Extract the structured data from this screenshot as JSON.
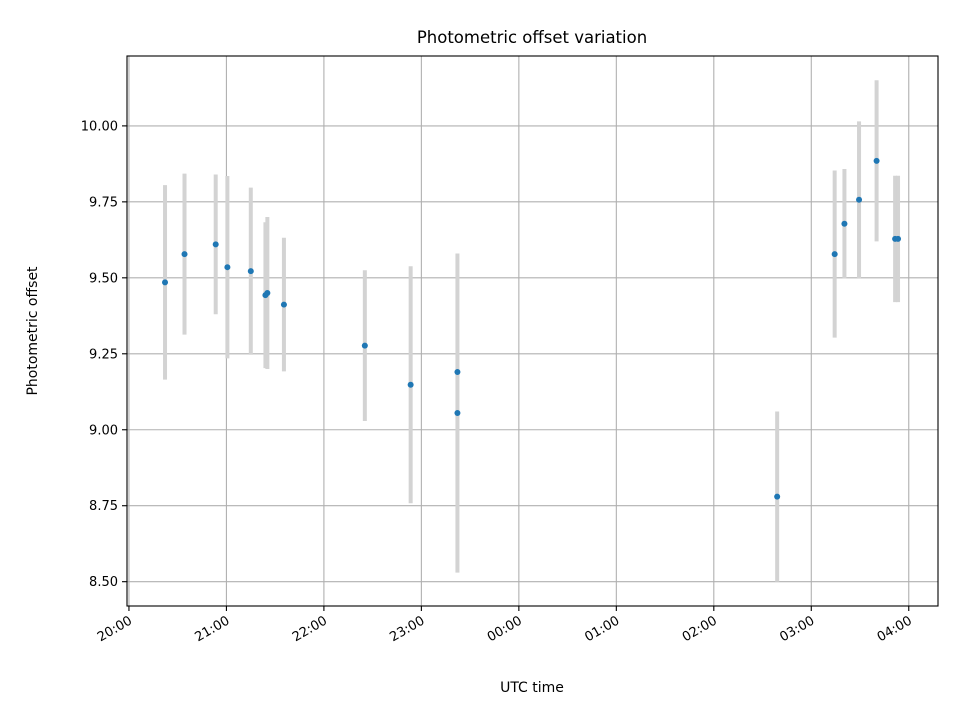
{
  "chart_data": {
    "type": "scatter",
    "title": "Photometric offset variation",
    "xlabel": "UTC time",
    "ylabel": "Photometric offset",
    "x_ticks": [
      "20:00",
      "21:00",
      "22:00",
      "23:00",
      "00:00",
      "01:00",
      "02:00",
      "03:00",
      "04:00"
    ],
    "x_tick_hours": [
      20,
      21,
      22,
      23,
      24,
      25,
      26,
      27,
      28
    ],
    "xlim_hours": [
      19.98,
      28.3
    ],
    "y_ticks": [
      "8.50",
      "8.75",
      "9.00",
      "9.25",
      "9.50",
      "9.75",
      "10.00"
    ],
    "y_tick_values": [
      8.5,
      8.75,
      9.0,
      9.25,
      9.5,
      9.75,
      10.0
    ],
    "ylim": [
      8.42,
      10.23
    ],
    "grid": true,
    "marker_color": "#1f77b4",
    "errorbar_color": "#d3d3d3",
    "points": [
      {
        "time": "20:22",
        "hour": 20.37,
        "y": 9.485,
        "err": 0.32
      },
      {
        "time": "20:34",
        "hour": 20.57,
        "y": 9.578,
        "err": 0.265
      },
      {
        "time": "20:53",
        "hour": 20.89,
        "y": 9.61,
        "err": 0.23
      },
      {
        "time": "21:01",
        "hour": 21.01,
        "y": 9.535,
        "err": 0.3
      },
      {
        "time": "21:15",
        "hour": 21.25,
        "y": 9.522,
        "err": 0.275
      },
      {
        "time": "21:24",
        "hour": 21.4,
        "y": 9.443,
        "err": 0.24
      },
      {
        "time": "21:25",
        "hour": 21.42,
        "y": 9.45,
        "err": 0.25
      },
      {
        "time": "21:35",
        "hour": 21.59,
        "y": 9.412,
        "err": 0.22
      },
      {
        "time": "22:25",
        "hour": 22.42,
        "y": 9.277,
        "err": 0.248
      },
      {
        "time": "22:53",
        "hour": 22.89,
        "y": 9.148,
        "err": 0.39
      },
      {
        "time": "23:22",
        "hour": 23.37,
        "y": 9.19,
        "err": 0.0
      },
      {
        "time": "23:22",
        "hour": 23.37,
        "y": 9.055,
        "err": 0.525
      },
      {
        "time": "02:39",
        "hour": 26.65,
        "y": 8.78,
        "err": 0.28
      },
      {
        "time": "03:14",
        "hour": 27.24,
        "y": 9.578,
        "err": 0.275
      },
      {
        "time": "03:20",
        "hour": 27.34,
        "y": 9.678,
        "err": 0.18
      },
      {
        "time": "03:29",
        "hour": 27.49,
        "y": 9.757,
        "err": 0.258
      },
      {
        "time": "03:40",
        "hour": 27.67,
        "y": 9.885,
        "err": 0.265
      },
      {
        "time": "03:52",
        "hour": 27.86,
        "y": 9.628,
        "err": 0.208
      },
      {
        "time": "03:53",
        "hour": 27.89,
        "y": 9.628,
        "err": 0.208
      }
    ]
  }
}
